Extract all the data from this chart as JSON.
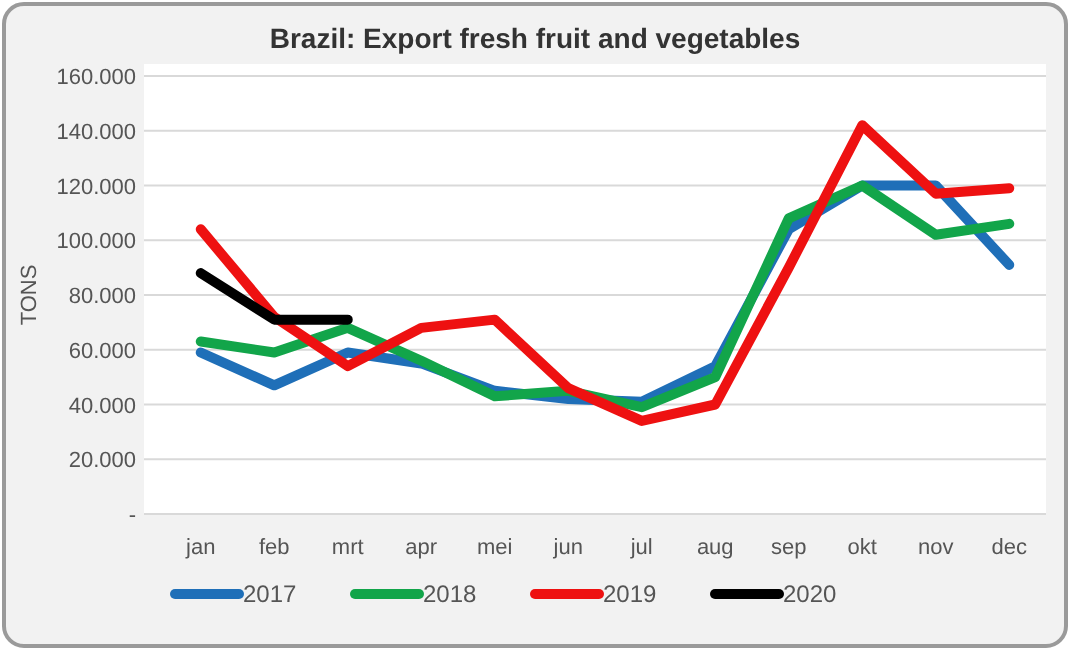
{
  "chart_data": {
    "type": "line",
    "title": "Brazil: Export fresh fruit and vegetables",
    "ylabel": "TONS",
    "categories": [
      "jan",
      "feb",
      "mrt",
      "apr",
      "mei",
      "jun",
      "jul",
      "aug",
      "sep",
      "okt",
      "nov",
      "dec"
    ],
    "series": [
      {
        "name": "2017",
        "color": "#1f6fb8",
        "values": [
          59000,
          47000,
          59000,
          55000,
          45000,
          42000,
          41000,
          54000,
          104000,
          120000,
          120000,
          91000
        ]
      },
      {
        "name": "2018",
        "color": "#12a54a",
        "values": [
          63000,
          59000,
          68000,
          56000,
          43000,
          45000,
          39000,
          50000,
          108000,
          120000,
          102000,
          106000
        ]
      },
      {
        "name": "2019",
        "color": "#ee1111",
        "values": [
          104000,
          72000,
          54000,
          68000,
          71000,
          46000,
          34000,
          40000,
          90000,
          142000,
          117000,
          119000
        ]
      },
      {
        "name": "2020",
        "color": "#000000",
        "values": [
          88000,
          71000,
          71000,
          null,
          null,
          null,
          null,
          null,
          null,
          null,
          null,
          null
        ]
      }
    ],
    "ylim": [
      0,
      160000
    ],
    "yticks": [
      {
        "value": 0,
        "label": "-"
      },
      {
        "value": 20000,
        "label": "20.000"
      },
      {
        "value": 40000,
        "label": "40.000"
      },
      {
        "value": 60000,
        "label": "60.000"
      },
      {
        "value": 80000,
        "label": "80.000"
      },
      {
        "value": 100000,
        "label": "100.000"
      },
      {
        "value": 120000,
        "label": "120.000"
      },
      {
        "value": 140000,
        "label": "140.000"
      },
      {
        "value": 160000,
        "label": "160.000"
      }
    ],
    "grid": "y",
    "legend": "bottom",
    "line_style": "solid",
    "marker": "none"
  }
}
